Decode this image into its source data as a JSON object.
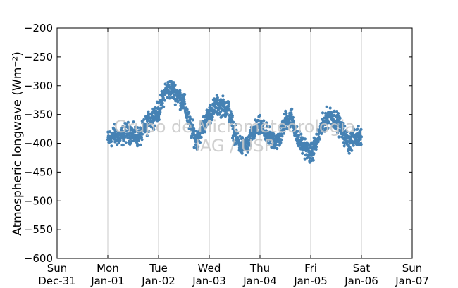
{
  "chart_data": {
    "type": "scatter",
    "title": "",
    "ylabel": "Atmospheric longwave (Wm⁻²)",
    "xlabel": "",
    "ylim": [
      -600,
      -200
    ],
    "yticks": [
      -200,
      -250,
      -300,
      -350,
      -400,
      -450,
      -500,
      -550,
      -600
    ],
    "xlim": [
      "Dec-31 00:00",
      "Jan-07 00:00"
    ],
    "xticks": [
      {
        "day": "Sun",
        "date": "Dec-31"
      },
      {
        "day": "Mon",
        "date": "Jan-01"
      },
      {
        "day": "Tue",
        "date": "Jan-02"
      },
      {
        "day": "Wed",
        "date": "Jan-03"
      },
      {
        "day": "Thu",
        "date": "Jan-04"
      },
      {
        "day": "Fri",
        "date": "Jan-05"
      },
      {
        "day": "Sat",
        "date": "Jan-06"
      },
      {
        "day": "Sun",
        "date": "Jan-07"
      }
    ],
    "grid": "vertical",
    "watermark": [
      "Grupo de Micrometeorologia",
      "IAG / USP"
    ],
    "series": [
      {
        "color": "#4682b4",
        "x_start": "Jan-01 00:00",
        "x_end": "Jan-06 00:00",
        "trend": [
          [
            "Jan-01 00:00",
            -395
          ],
          [
            "Jan-01 03:00",
            -385
          ],
          [
            "Jan-01 06:00",
            -390
          ],
          [
            "Jan-01 09:00",
            -380
          ],
          [
            "Jan-01 12:00",
            -385
          ],
          [
            "Jan-01 15:00",
            -390
          ],
          [
            "Jan-01 18:00",
            -370
          ],
          [
            "Jan-01 21:00",
            -355
          ],
          [
            "Jan-02 00:00",
            -345
          ],
          [
            "Jan-02 03:00",
            -310
          ],
          [
            "Jan-02 06:00",
            -305
          ],
          [
            "Jan-02 09:00",
            -315
          ],
          [
            "Jan-02 12:00",
            -330
          ],
          [
            "Jan-02 15:00",
            -370
          ],
          [
            "Jan-02 18:00",
            -395
          ],
          [
            "Jan-02 21:00",
            -370
          ],
          [
            "Jan-03 00:00",
            -350
          ],
          [
            "Jan-03 03:00",
            -335
          ],
          [
            "Jan-03 06:00",
            -335
          ],
          [
            "Jan-03 09:00",
            -340
          ],
          [
            "Jan-03 12:00",
            -385
          ],
          [
            "Jan-03 15:00",
            -405
          ],
          [
            "Jan-03 18:00",
            -405
          ],
          [
            "Jan-03 21:00",
            -380
          ],
          [
            "Jan-04 00:00",
            -370
          ],
          [
            "Jan-04 03:00",
            -385
          ],
          [
            "Jan-04 06:00",
            -395
          ],
          [
            "Jan-04 09:00",
            -395
          ],
          [
            "Jan-04 12:00",
            -360
          ],
          [
            "Jan-04 15:00",
            -355
          ],
          [
            "Jan-04 18:00",
            -395
          ],
          [
            "Jan-04 21:00",
            -405
          ],
          [
            "Jan-05 00:00",
            -420
          ],
          [
            "Jan-05 03:00",
            -395
          ],
          [
            "Jan-05 06:00",
            -365
          ],
          [
            "Jan-05 09:00",
            -350
          ],
          [
            "Jan-05 12:00",
            -360
          ],
          [
            "Jan-05 15:00",
            -380
          ],
          [
            "Jan-05 18:00",
            -400
          ],
          [
            "Jan-05 21:00",
            -390
          ],
          [
            "Jan-06 00:00",
            -385
          ]
        ],
        "spread": 25
      }
    ]
  }
}
